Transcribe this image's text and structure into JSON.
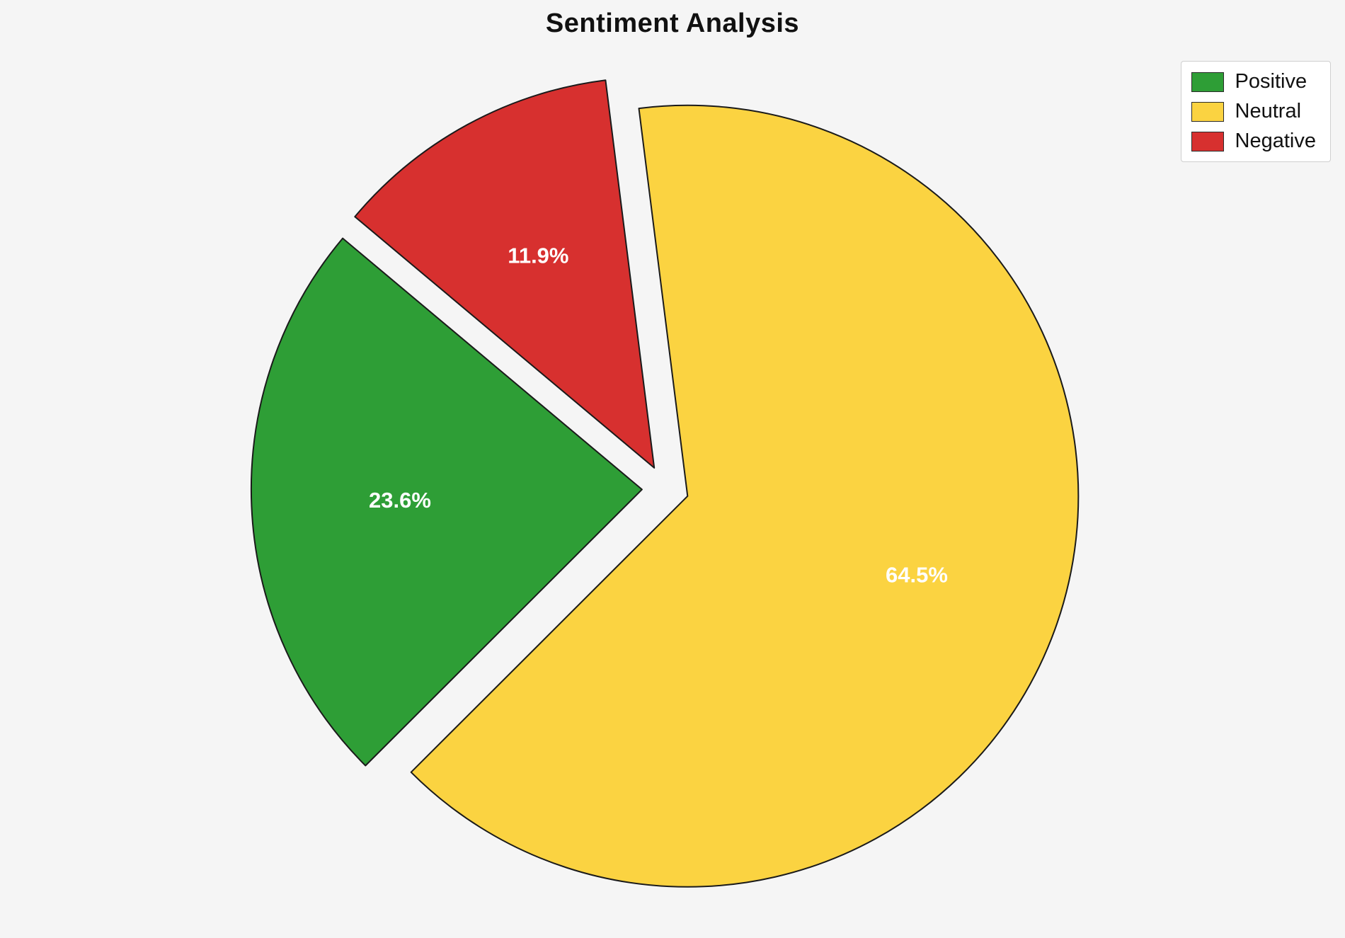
{
  "chart_data": {
    "type": "pie",
    "title": "Sentiment Analysis",
    "slices": [
      {
        "label": "Positive",
        "value": 23.6,
        "pct_label": "23.6%",
        "color": "#2E9E36"
      },
      {
        "label": "Neutral",
        "value": 64.5,
        "pct_label": "64.5%",
        "color": "#FBD341"
      },
      {
        "label": "Negative",
        "value": 11.9,
        "pct_label": "11.9%",
        "color": "#D7302F"
      }
    ],
    "start_angle_deg": 140,
    "direction": "counterclockwise",
    "explode": 0.06,
    "pct_distance": 0.62,
    "legend": {
      "position": "upper right"
    },
    "background": "#F5F5F5",
    "wedge_edge_color": "#1A1A1A",
    "pct_label_color": "#FFFFFF",
    "title_color": "#111111"
  }
}
